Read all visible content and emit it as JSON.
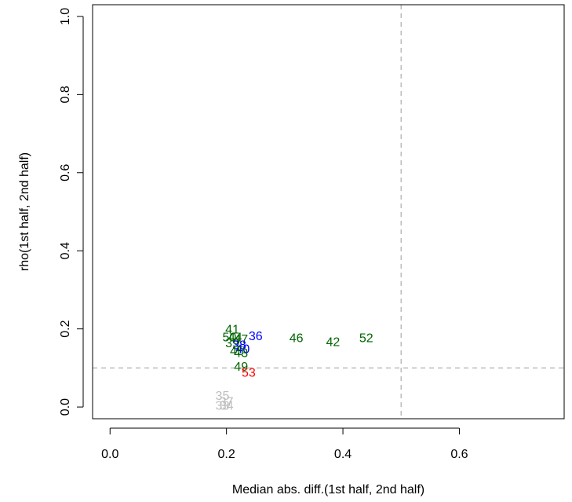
{
  "chart_data": {
    "type": "scatter",
    "title": "",
    "xlabel": "Median abs. diff.(1st half, 2nd half)",
    "ylabel": "rho(1st half, 2nd half)",
    "xlim": [
      -0.03,
      0.78
    ],
    "ylim": [
      -0.03,
      1.03
    ],
    "xticks": [
      {
        "value": 0.0,
        "label": "0.0"
      },
      {
        "value": 0.2,
        "label": "0.2"
      },
      {
        "value": 0.4,
        "label": "0.4"
      },
      {
        "value": 0.6,
        "label": "0.6"
      }
    ],
    "yticks": [
      {
        "value": 0.0,
        "label": "0.0"
      },
      {
        "value": 0.2,
        "label": "0.2"
      },
      {
        "value": 0.4,
        "label": "0.4"
      },
      {
        "value": 0.6,
        "label": "0.6"
      },
      {
        "value": 0.8,
        "label": "0.8"
      },
      {
        "value": 1.0,
        "label": "1.0"
      }
    ],
    "reference_lines": [
      {
        "axis": "x",
        "value": 0.5,
        "color": "#bdbdbd",
        "style": "dashed"
      },
      {
        "axis": "y",
        "value": 0.1,
        "color": "#bdbdbd",
        "style": "dashed"
      }
    ],
    "grid": false,
    "legend": "none",
    "points": [
      {
        "label": "41",
        "x": 0.21,
        "y": 0.2,
        "color": "#006400"
      },
      {
        "label": "36",
        "x": 0.25,
        "y": 0.183,
        "color": "#0000ff"
      },
      {
        "label": "46",
        "x": 0.32,
        "y": 0.178,
        "color": "#006400"
      },
      {
        "label": "42",
        "x": 0.383,
        "y": 0.168,
        "color": "#006400"
      },
      {
        "label": "52",
        "x": 0.44,
        "y": 0.178,
        "color": "#006400"
      },
      {
        "label": "50",
        "x": 0.205,
        "y": 0.18,
        "color": "#006400"
      },
      {
        "label": "44",
        "x": 0.215,
        "y": 0.18,
        "color": "#006400"
      },
      {
        "label": "47",
        "x": 0.225,
        "y": 0.175,
        "color": "#006400"
      },
      {
        "label": "39",
        "x": 0.21,
        "y": 0.165,
        "color": "#006400"
      },
      {
        "label": "38",
        "x": 0.222,
        "y": 0.16,
        "color": "#0000ff"
      },
      {
        "label": "40",
        "x": 0.228,
        "y": 0.15,
        "color": "#0000ff"
      },
      {
        "label": "45",
        "x": 0.218,
        "y": 0.145,
        "color": "#006400"
      },
      {
        "label": "43",
        "x": 0.225,
        "y": 0.14,
        "color": "#006400"
      },
      {
        "label": "49",
        "x": 0.225,
        "y": 0.105,
        "color": "#006400"
      },
      {
        "label": "53",
        "x": 0.238,
        "y": 0.09,
        "color": "#ff0000"
      },
      {
        "label": "35",
        "x": 0.193,
        "y": 0.03,
        "color": "#bdbdbd"
      },
      {
        "label": "37",
        "x": 0.2,
        "y": 0.015,
        "color": "#bdbdbd"
      },
      {
        "label": "33",
        "x": 0.193,
        "y": 0.005,
        "color": "#bdbdbd"
      },
      {
        "label": "34",
        "x": 0.2,
        "y": 0.005,
        "color": "#bdbdbd"
      }
    ]
  }
}
